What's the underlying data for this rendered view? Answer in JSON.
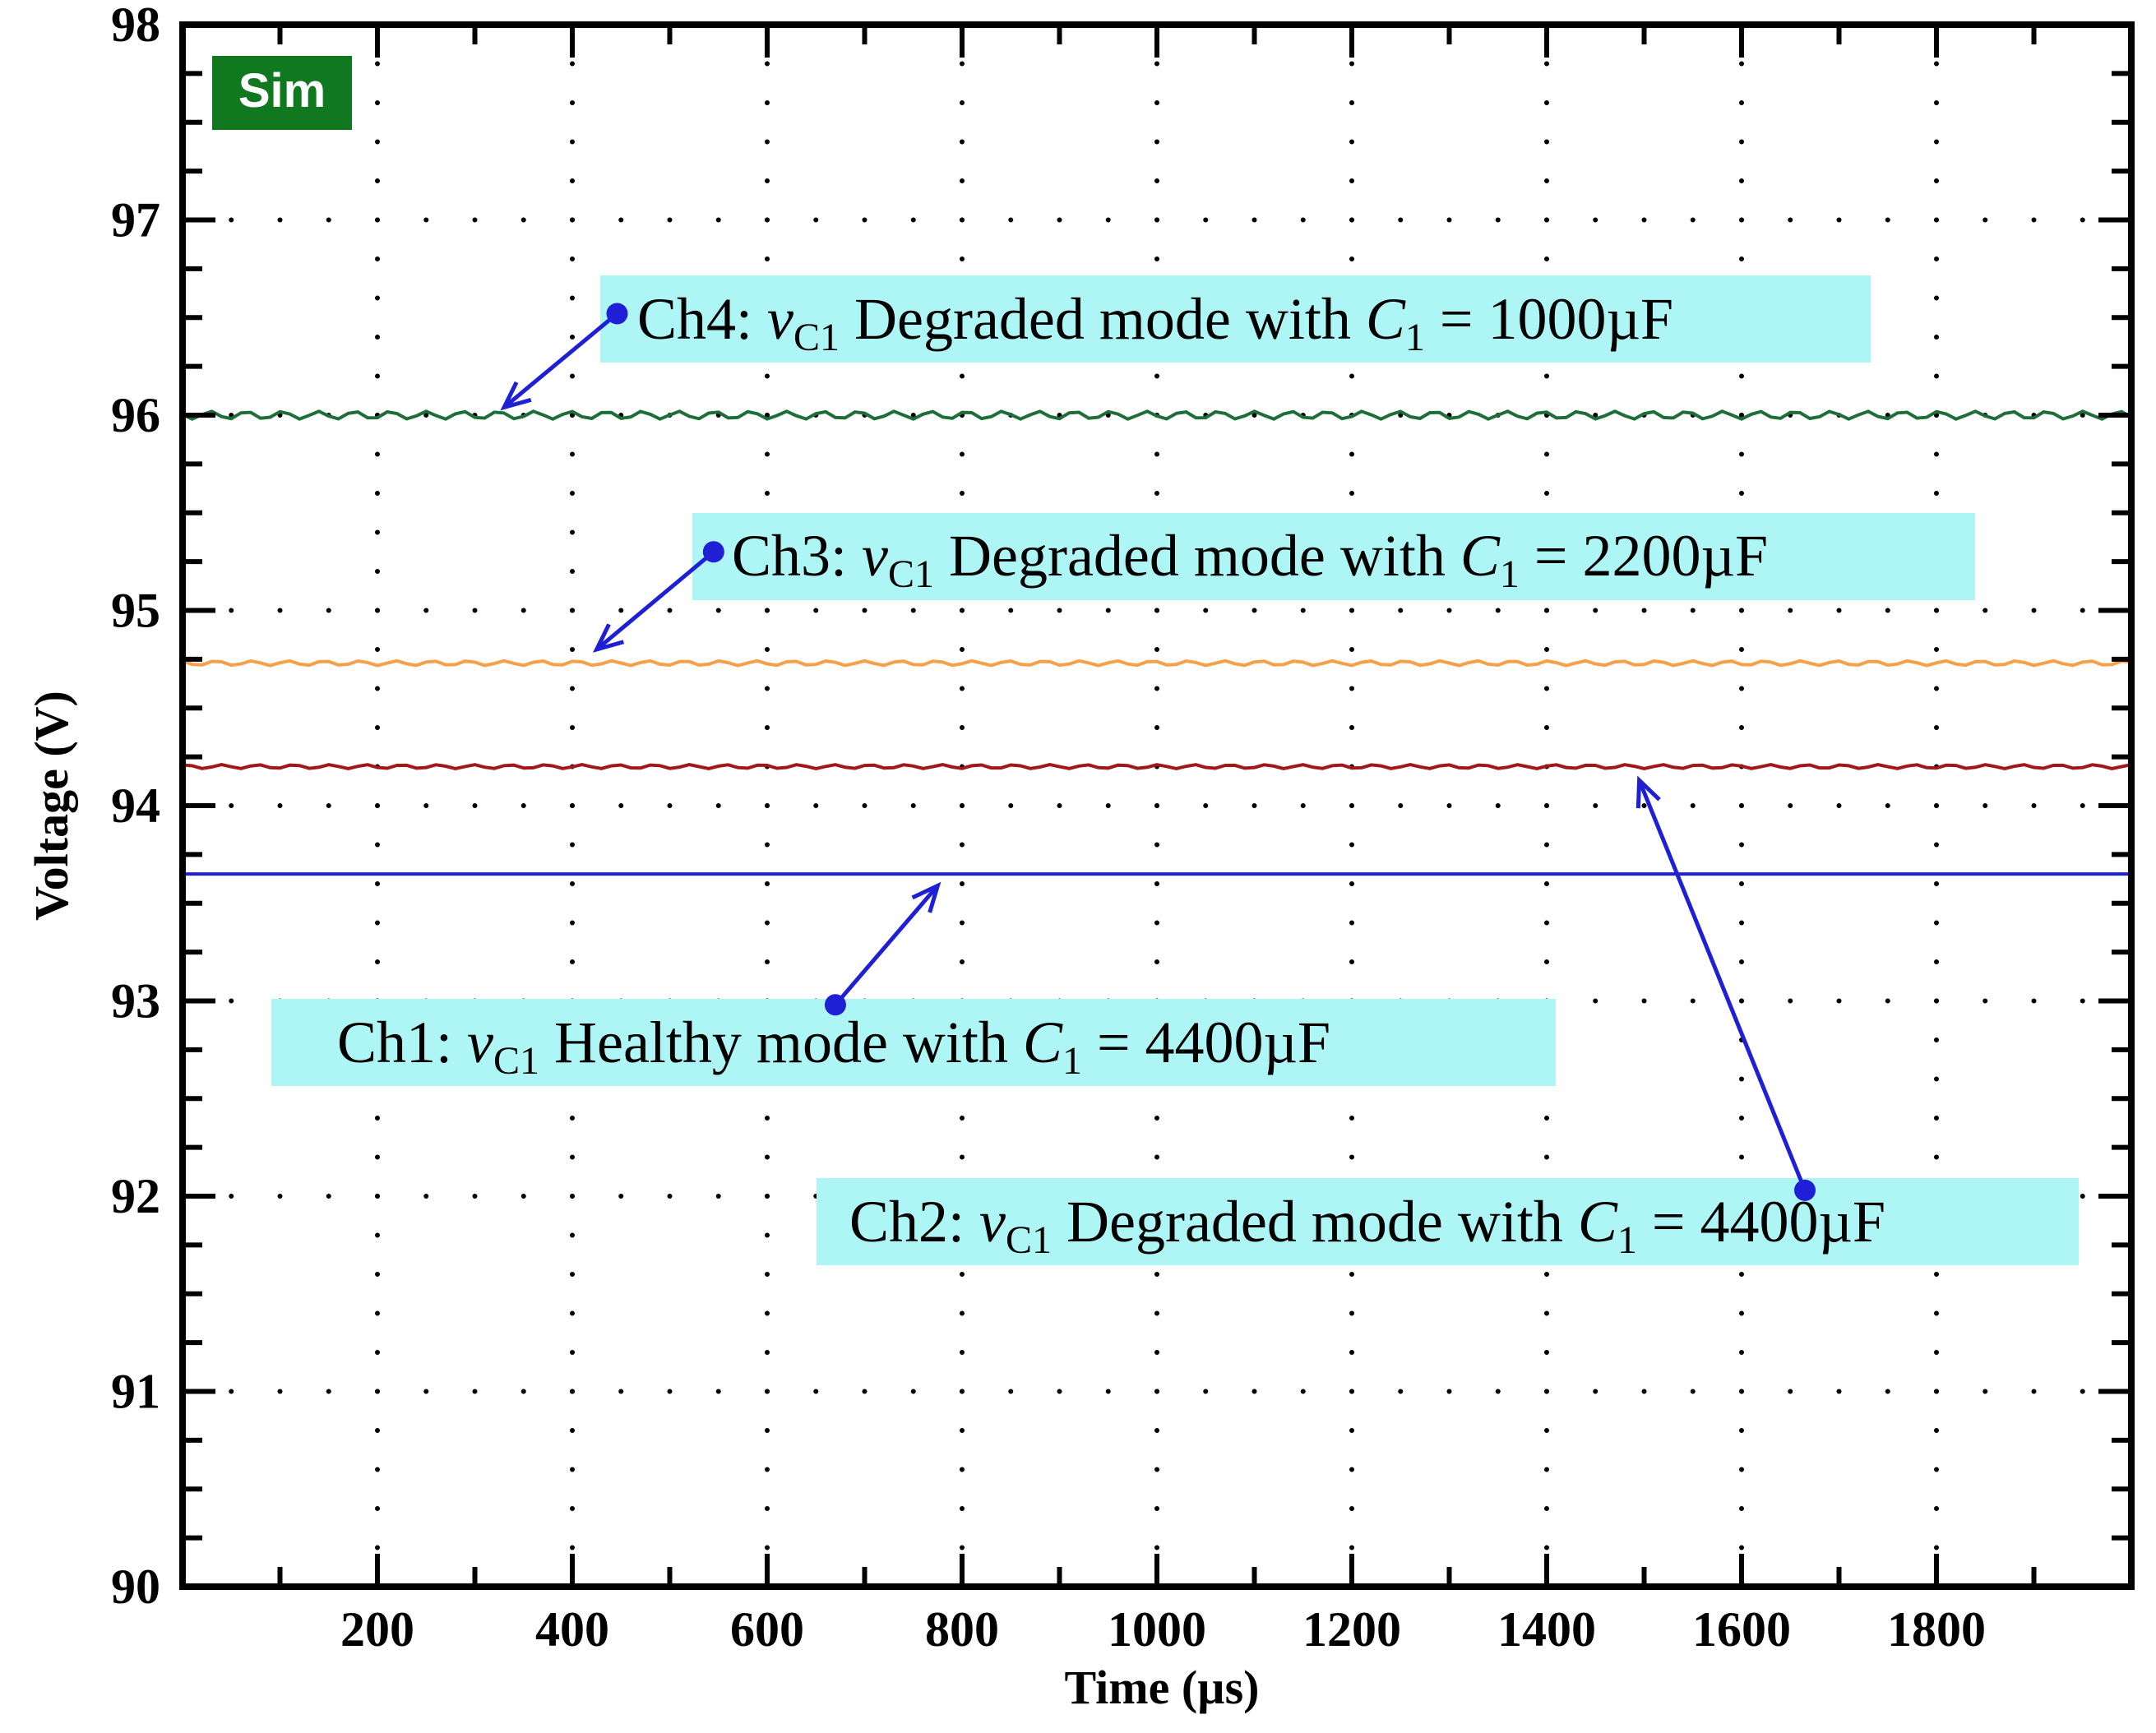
{
  "chart_data": {
    "type": "line",
    "title": "",
    "badge": "Sim",
    "xlabel": "Time (µs)",
    "ylabel": "Voltage (V)",
    "xlim": [
      0,
      2000
    ],
    "ylim": [
      90,
      98
    ],
    "x_ticks": [
      200,
      400,
      600,
      800,
      1000,
      1200,
      1400,
      1600,
      1800
    ],
    "x_tick_labels": [
      "200",
      "400",
      "600",
      "800",
      "1000",
      "1200",
      "1400",
      "1600",
      "1800"
    ],
    "y_ticks": [
      90,
      91,
      92,
      93,
      94,
      95,
      96,
      97,
      98
    ],
    "y_tick_labels": [
      "90",
      "91",
      "92",
      "93",
      "94",
      "95",
      "96",
      "97",
      "98"
    ],
    "grid": "dotted",
    "series": [
      {
        "name": "Ch1",
        "color": "#1f1fd6",
        "mean": 93.65,
        "ripple": 0.0,
        "x_start": 0,
        "x_end": 2000
      },
      {
        "name": "Ch2",
        "color": "#a01818",
        "mean": 94.2,
        "ripple": 0.01,
        "x_start": 0,
        "x_end": 2000
      },
      {
        "name": "Ch3",
        "color": "#f5a04a",
        "mean": 94.73,
        "ripple": 0.012,
        "x_start": 0,
        "x_end": 2000
      },
      {
        "name": "Ch4",
        "color": "#1e6e3c",
        "mean": 96.0,
        "ripple": 0.02,
        "x_start": 0,
        "x_end": 2000
      }
    ],
    "annotations": [
      {
        "channel": "Ch4",
        "prefix": "Ch4: ",
        "var": "v",
        "var_sub": "C1",
        "mid": " Degraded mode with ",
        "cap": "C",
        "cap_sub": "1",
        "value": " = 1000µF",
        "dot_at": [
          446,
          96.52
        ],
        "arrow_to": [
          330,
          96.04
        ]
      },
      {
        "channel": "Ch3",
        "prefix": "Ch3: ",
        "var": "v",
        "var_sub": "C1",
        "mid": " Degraded mode with ",
        "cap": "C",
        "cap_sub": "1",
        "value": " = 2200µF",
        "dot_at": [
          545,
          95.3
        ],
        "arrow_to": [
          425,
          94.8
        ]
      },
      {
        "channel": "Ch1",
        "prefix": "Ch1: ",
        "var": "v",
        "var_sub": "C1",
        "mid": " Healthy mode with ",
        "cap": "C",
        "cap_sub": "1",
        "value": " = 4400µF",
        "dot_at": [
          670,
          92.98
        ],
        "arrow_to": [
          775,
          93.59
        ]
      },
      {
        "channel": "Ch2",
        "prefix": "Ch2: ",
        "var": "v",
        "var_sub": "C1",
        "mid": " Degraded mode with ",
        "cap": "C",
        "cap_sub": "1",
        "value": " = 4400µF",
        "dot_at": [
          1665,
          92.03
        ],
        "arrow_to": [
          1495,
          94.13
        ]
      }
    ],
    "colors": {
      "annotation_box": "#aef5f5",
      "arrow": "#1f1fd6",
      "badge_bg": "#10781e"
    }
  }
}
